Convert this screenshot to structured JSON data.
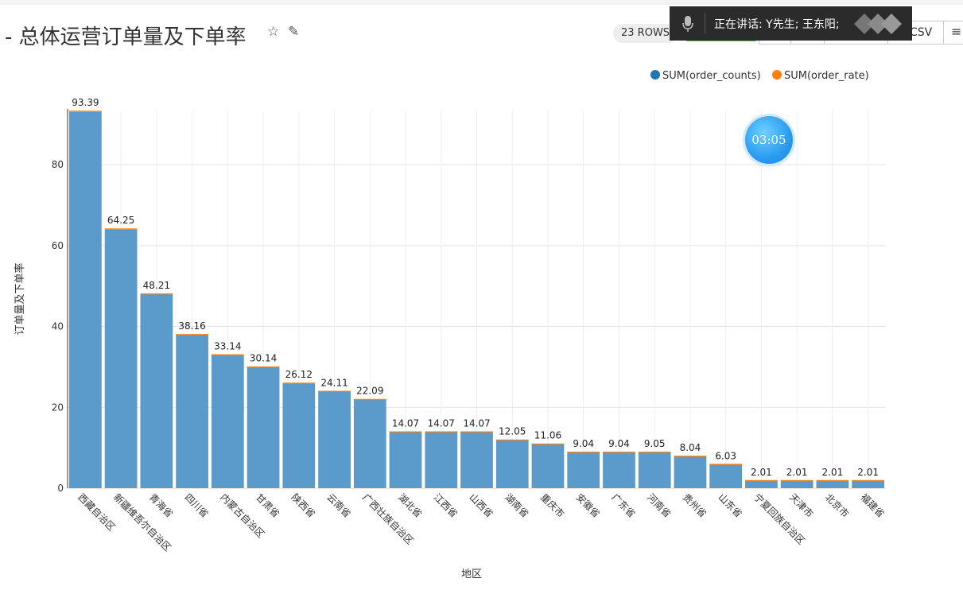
{
  "header": {
    "title": "- 总体运营订单量及下单率",
    "rows_badge": "23 ROWS",
    "csv_label": "CSV"
  },
  "speaking_banner": {
    "text": "正在讲话: Y先生; 王东阳;",
    "icon": "microphone-icon"
  },
  "timer": "03:05",
  "icons": {
    "star": "star-icon",
    "edit": "edit-icon",
    "menu": "hamburger-menu-icon"
  },
  "colors": {
    "series1": "#1f77b4",
    "series2": "#ff7f0e",
    "bar_fill": "#5b9bcb"
  },
  "chart_data": {
    "type": "bar",
    "stacked": true,
    "categories": [
      "西藏自治区",
      "新疆维吾尔自治区",
      "青海省",
      "四川省",
      "内蒙古自治区",
      "甘肃省",
      "陕西省",
      "云南省",
      "广西壮族自治区",
      "湖北省",
      "江西省",
      "山西省",
      "湖南省",
      "重庆市",
      "安徽省",
      "广东省",
      "河南省",
      "贵州省",
      "山东省",
      "宁夏回族自治区",
      "天津市",
      "北京市",
      "福建省"
    ],
    "series": [
      {
        "name": "SUM(order_counts)",
        "color": "#1f77b4",
        "values": [
          93,
          64,
          48,
          38,
          33,
          30,
          26,
          24,
          22,
          14,
          14,
          14,
          12,
          11,
          9,
          9,
          9,
          8,
          6,
          2,
          2,
          2,
          2
        ]
      },
      {
        "name": "SUM(order_rate)",
        "color": "#ff7f0e",
        "values": [
          0.39,
          0.25,
          0.21,
          0.16,
          0.14,
          0.14,
          0.12,
          0.11,
          0.09,
          0.07,
          0.07,
          0.07,
          0.05,
          0.06,
          0.04,
          0.04,
          0.05,
          0.04,
          0.03,
          0.01,
          0.01,
          0.01,
          0.01
        ]
      }
    ],
    "totals": [
      "93.39",
      "64.25",
      "48.21",
      "38.16",
      "33.14",
      "30.14",
      "26.12",
      "24.11",
      "22.09",
      "14.07",
      "14.07",
      "14.07",
      "12.05",
      "11.06",
      "9.04",
      "9.04",
      "9.05",
      "8.04",
      "6.03",
      "2.01",
      "2.01",
      "2.01",
      "2.01"
    ],
    "xlabel": "地区",
    "ylabel": "订单量及下单率",
    "ylim": [
      0,
      93.39
    ],
    "yticks": [
      0,
      20,
      40,
      60,
      80
    ],
    "grid": true,
    "legend_position": "top-right"
  }
}
